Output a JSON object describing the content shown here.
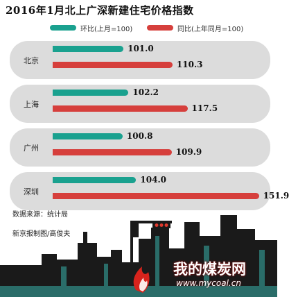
{
  "chart_data": {
    "type": "bar",
    "orientation": "horizontal",
    "title": "2016年1月北上广深新建住宅价格指数",
    "categories": [
      "北京",
      "上海",
      "广州",
      "深圳"
    ],
    "series": [
      {
        "name": "环比(上月=100)",
        "color": "#1aa18f",
        "values": [
          101.0,
          102.2,
          100.8,
          104.0
        ],
        "labels": [
          "101.0",
          "102.2",
          "100.8",
          "104.0"
        ]
      },
      {
        "name": "同比(上年同月=100)",
        "color": "#d63f3c",
        "values": [
          110.3,
          117.5,
          109.9,
          151.9
        ],
        "labels": [
          "110.3",
          "117.5",
          "109.9",
          "151.9"
        ]
      }
    ],
    "legend_position": "top",
    "grid": false
  },
  "footer": {
    "source": "数据来源：统计局",
    "credit": "新京报制图/高俊夫"
  },
  "watermark": {
    "text": "我的煤炭网",
    "url": "www.mycoal.cn"
  }
}
